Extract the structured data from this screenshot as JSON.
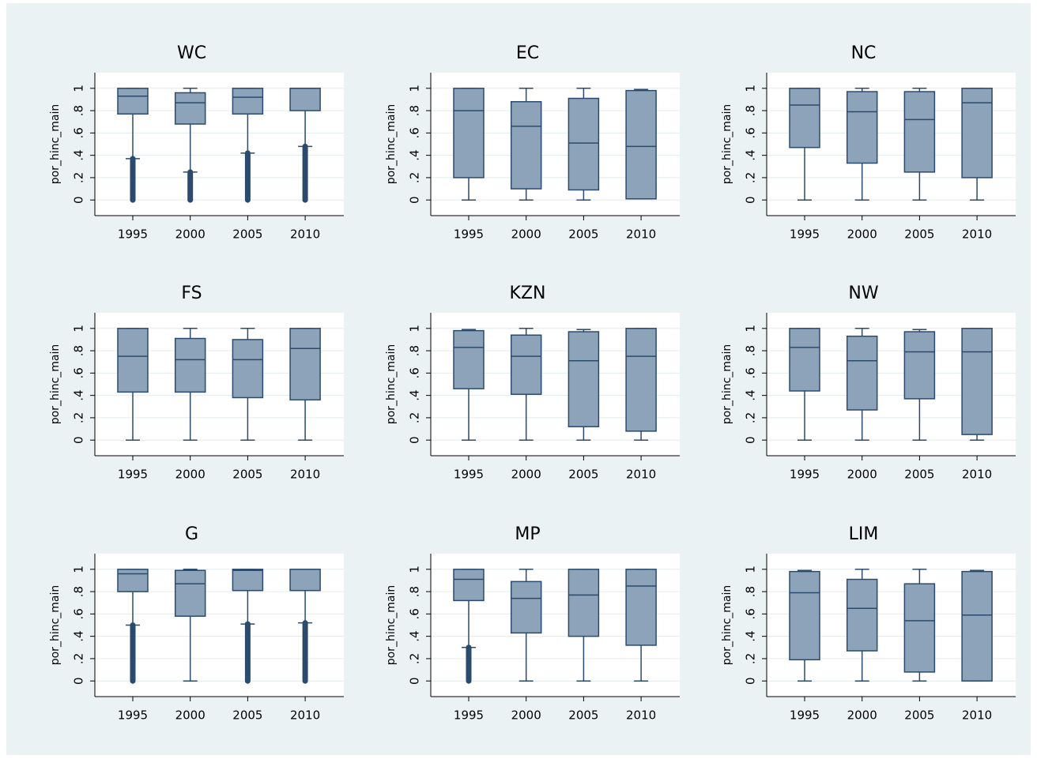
{
  "chart_data": [
    {
      "type": "box",
      "title": "WC",
      "ylabel": "por_hinc_main",
      "categories": [
        "1995",
        "2000",
        "2005",
        "2010"
      ],
      "ylim": [
        -0.14,
        1.14
      ],
      "yticks": [
        0,
        {
          "value": 0.2,
          "label": ".2"
        },
        {
          "value": 0.4,
          "label": ".4"
        },
        {
          "value": 0.6,
          "label": ".6"
        },
        {
          "value": 0.8,
          "label": ".8"
        },
        1
      ],
      "grid": true,
      "color": "#8da3b9",
      "edge": "#2b4b6e",
      "min": [
        0.37,
        0.25,
        0.42,
        0.48
      ],
      "q1": [
        0.77,
        0.68,
        0.77,
        0.8
      ],
      "median": [
        0.93,
        0.87,
        0.92,
        1
      ],
      "q3": [
        1,
        0.96,
        1,
        1
      ],
      "max": [
        1,
        1,
        1,
        1
      ],
      "outliers": [
        [
          0,
          0.37
        ],
        [
          0,
          0.25
        ],
        [
          0,
          0.42
        ],
        [
          0,
          0.48
        ]
      ]
    },
    {
      "type": "box",
      "title": "EC",
      "ylabel": "por_hinc_main",
      "categories": [
        "1995",
        "2000",
        "2005",
        "2010"
      ],
      "ylim": [
        -0.14,
        1.14
      ],
      "yticks": [
        0,
        {
          "value": 0.2,
          "label": ".2"
        },
        {
          "value": 0.4,
          "label": ".4"
        },
        {
          "value": 0.6,
          "label": ".6"
        },
        {
          "value": 0.8,
          "label": ".8"
        },
        1
      ],
      "grid": true,
      "color": "#8da3b9",
      "edge": "#2b4b6e",
      "min": [
        0,
        0,
        0,
        0.01
      ],
      "q1": [
        0.2,
        0.1,
        0.09,
        0.01
      ],
      "median": [
        0.8,
        0.66,
        0.51,
        0.48
      ],
      "q3": [
        1,
        0.88,
        0.91,
        0.98
      ],
      "max": [
        1,
        1,
        1,
        0.99
      ],
      "outliers": [
        null,
        null,
        null,
        null
      ]
    },
    {
      "type": "box",
      "title": "NC",
      "ylabel": "por_hinc_main",
      "categories": [
        "1995",
        "2000",
        "2005",
        "2010"
      ],
      "ylim": [
        -0.14,
        1.14
      ],
      "yticks": [
        0,
        {
          "value": 0.2,
          "label": ".2"
        },
        {
          "value": 0.4,
          "label": ".4"
        },
        {
          "value": 0.6,
          "label": ".6"
        },
        {
          "value": 0.8,
          "label": ".8"
        },
        1
      ],
      "grid": true,
      "color": "#8da3b9",
      "edge": "#2b4b6e",
      "min": [
        0,
        0,
        0,
        0
      ],
      "q1": [
        0.47,
        0.33,
        0.25,
        0.2
      ],
      "median": [
        0.85,
        0.79,
        0.72,
        0.87
      ],
      "q3": [
        1,
        0.97,
        0.97,
        1
      ],
      "max": [
        1,
        1,
        1,
        1
      ],
      "outliers": [
        null,
        null,
        null,
        null
      ]
    },
    {
      "type": "box",
      "title": "FS",
      "ylabel": "por_hinc_main",
      "categories": [
        "1995",
        "2000",
        "2005",
        "2010"
      ],
      "ylim": [
        -0.14,
        1.14
      ],
      "yticks": [
        0,
        {
          "value": 0.2,
          "label": ".2"
        },
        {
          "value": 0.4,
          "label": ".4"
        },
        {
          "value": 0.6,
          "label": ".6"
        },
        {
          "value": 0.8,
          "label": ".8"
        },
        1
      ],
      "grid": true,
      "color": "#8da3b9",
      "edge": "#2b4b6e",
      "min": [
        0,
        0,
        0,
        0
      ],
      "q1": [
        0.43,
        0.43,
        0.38,
        0.36
      ],
      "median": [
        0.75,
        0.72,
        0.72,
        0.82
      ],
      "q3": [
        1,
        0.91,
        0.9,
        1
      ],
      "max": [
        1,
        1,
        1,
        1
      ],
      "outliers": [
        null,
        null,
        null,
        null
      ]
    },
    {
      "type": "box",
      "title": "KZN",
      "ylabel": "por_hinc_main",
      "categories": [
        "1995",
        "2000",
        "2005",
        "2010"
      ],
      "ylim": [
        -0.14,
        1.14
      ],
      "yticks": [
        0,
        {
          "value": 0.2,
          "label": ".2"
        },
        {
          "value": 0.4,
          "label": ".4"
        },
        {
          "value": 0.6,
          "label": ".6"
        },
        {
          "value": 0.8,
          "label": ".8"
        },
        1
      ],
      "grid": true,
      "color": "#8da3b9",
      "edge": "#2b4b6e",
      "min": [
        0,
        0,
        0,
        0
      ],
      "q1": [
        0.46,
        0.41,
        0.12,
        0.08
      ],
      "median": [
        0.83,
        0.75,
        0.71,
        0.75
      ],
      "q3": [
        0.98,
        0.94,
        0.97,
        1
      ],
      "max": [
        0.99,
        1,
        0.99,
        1
      ],
      "outliers": [
        null,
        null,
        null,
        null
      ]
    },
    {
      "type": "box",
      "title": "NW",
      "ylabel": "por_hinc_main",
      "categories": [
        "1995",
        "2000",
        "2005",
        "2010"
      ],
      "ylim": [
        -0.14,
        1.14
      ],
      "yticks": [
        0,
        {
          "value": 0.2,
          "label": ".2"
        },
        {
          "value": 0.4,
          "label": ".4"
        },
        {
          "value": 0.6,
          "label": ".6"
        },
        {
          "value": 0.8,
          "label": ".8"
        },
        1
      ],
      "grid": true,
      "color": "#8da3b9",
      "edge": "#2b4b6e",
      "min": [
        0,
        0,
        0,
        0
      ],
      "q1": [
        0.44,
        0.27,
        0.37,
        0.05
      ],
      "median": [
        0.83,
        0.71,
        0.79,
        0.79
      ],
      "q3": [
        1,
        0.93,
        0.97,
        1
      ],
      "max": [
        1,
        1,
        0.99,
        1
      ],
      "outliers": [
        null,
        null,
        null,
        null
      ]
    },
    {
      "type": "box",
      "title": "G",
      "ylabel": "por_hinc_main",
      "categories": [
        "1995",
        "2000",
        "2005",
        "2010"
      ],
      "ylim": [
        -0.14,
        1.14
      ],
      "yticks": [
        0,
        {
          "value": 0.2,
          "label": ".2"
        },
        {
          "value": 0.4,
          "label": ".4"
        },
        {
          "value": 0.6,
          "label": ".6"
        },
        {
          "value": 0.8,
          "label": ".8"
        },
        1
      ],
      "grid": true,
      "color": "#8da3b9",
      "edge": "#2b4b6e",
      "min": [
        0.5,
        0,
        0.51,
        0.52
      ],
      "q1": [
        0.8,
        0.58,
        0.81,
        0.81
      ],
      "median": [
        0.96,
        0.87,
        0.99,
        1
      ],
      "q3": [
        1,
        0.99,
        1,
        1
      ],
      "max": [
        1,
        1,
        1,
        1
      ],
      "outliers": [
        [
          0,
          0.5
        ],
        null,
        [
          0,
          0.51
        ],
        [
          0,
          0.52
        ]
      ]
    },
    {
      "type": "box",
      "title": "MP",
      "ylabel": "por_hinc_main",
      "categories": [
        "1995",
        "2000",
        "2005",
        "2010"
      ],
      "ylim": [
        -0.14,
        1.14
      ],
      "yticks": [
        0,
        {
          "value": 0.2,
          "label": ".2"
        },
        {
          "value": 0.4,
          "label": ".4"
        },
        {
          "value": 0.6,
          "label": ".6"
        },
        {
          "value": 0.8,
          "label": ".8"
        },
        1
      ],
      "grid": true,
      "color": "#8da3b9",
      "edge": "#2b4b6e",
      "min": [
        0.3,
        0,
        0,
        0
      ],
      "q1": [
        0.72,
        0.43,
        0.4,
        0.32
      ],
      "median": [
        0.91,
        0.74,
        0.77,
        0.85
      ],
      "q3": [
        1,
        0.89,
        1,
        1
      ],
      "max": [
        1,
        1,
        1,
        1
      ],
      "outliers": [
        [
          0,
          0.3
        ],
        null,
        null,
        null
      ]
    },
    {
      "type": "box",
      "title": "LIM",
      "ylabel": "por_hinc_main",
      "categories": [
        "1995",
        "2000",
        "2005",
        "2010"
      ],
      "ylim": [
        -0.14,
        1.14
      ],
      "yticks": [
        0,
        {
          "value": 0.2,
          "label": ".2"
        },
        {
          "value": 0.4,
          "label": ".4"
        },
        {
          "value": 0.6,
          "label": ".6"
        },
        {
          "value": 0.8,
          "label": ".8"
        },
        1
      ],
      "grid": true,
      "color": "#8da3b9",
      "edge": "#2b4b6e",
      "min": [
        0,
        0,
        0,
        0
      ],
      "q1": [
        0.19,
        0.27,
        0.08,
        0
      ],
      "median": [
        0.79,
        0.65,
        0.54,
        0.59
      ],
      "q3": [
        0.98,
        0.91,
        0.87,
        0.98
      ],
      "max": [
        0.99,
        1,
        1,
        0.99
      ],
      "outliers": [
        null,
        null,
        null,
        null
      ]
    }
  ]
}
